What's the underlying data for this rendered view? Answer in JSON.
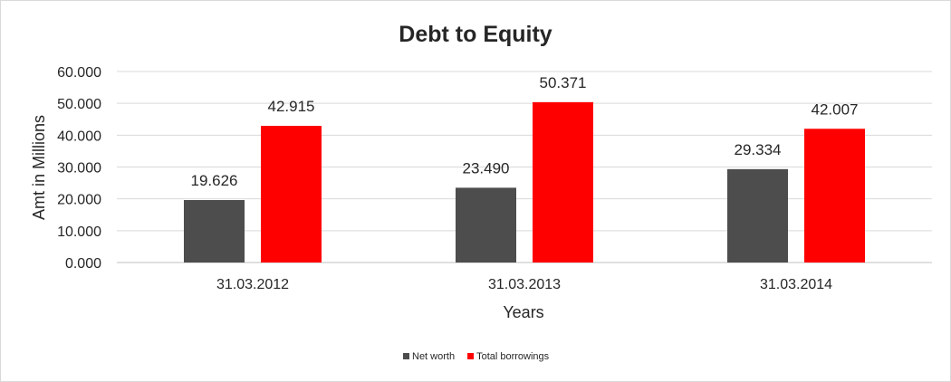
{
  "chart_data": {
    "type": "bar",
    "title": "Debt to Equity",
    "xlabel": "Years",
    "ylabel": "Amt in Millions",
    "categories": [
      "31.03.2012",
      "31.03.2013",
      "31.03.2014"
    ],
    "series": [
      {
        "name": "Net worth",
        "values": [
          19.626,
          23.49,
          29.334
        ],
        "labels": [
          "19.626",
          "23.490",
          "29.334"
        ],
        "color": "#4d4d4d"
      },
      {
        "name": "Total borrowings",
        "values": [
          42.915,
          50.371,
          42.007
        ],
        "labels": [
          "42.915",
          "50.371",
          "42.007"
        ],
        "color": "#ff0000"
      }
    ],
    "ylim": [
      0,
      60
    ],
    "yticks": [
      "0.000",
      "10.000",
      "20.000",
      "30.000",
      "40.000",
      "50.000",
      "60.000"
    ],
    "grid": true,
    "legend_position": "bottom"
  }
}
